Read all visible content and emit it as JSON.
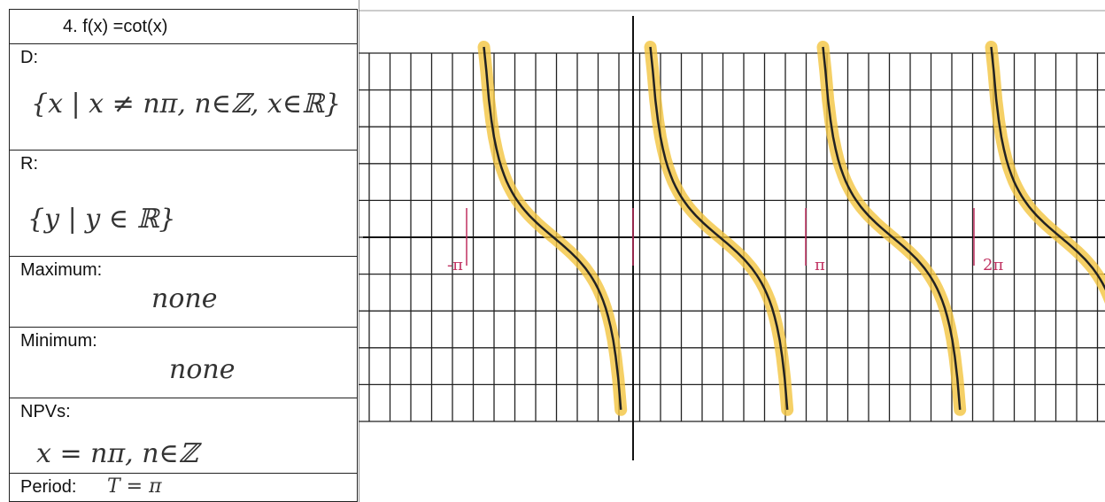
{
  "worksheet": {
    "title": "4.   f(x) =cot(x)",
    "rows": [
      {
        "label": "D:",
        "answer": "{x | x ≠ nπ, n∈ℤ, x∈ℝ}"
      },
      {
        "label": "R:",
        "answer": "{y | y ∈ ℝ}"
      },
      {
        "label": "Maximum:",
        "answer": "none"
      },
      {
        "label": "Minimum:",
        "answer": "none"
      },
      {
        "label": "NPVs:",
        "answer": "x = nπ, n∈ℤ"
      },
      {
        "label": "Period:",
        "answer": "T = π"
      }
    ],
    "graph_labels": [
      "-π",
      "π",
      "2π"
    ]
  }
}
